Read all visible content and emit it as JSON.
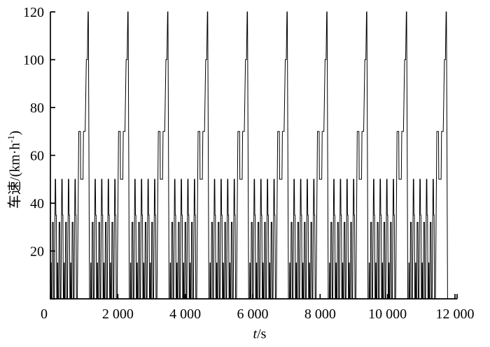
{
  "figure": {
    "background": "#ffffff",
    "line_color": "#000000",
    "labels": {
      "ylabel_prefix": "车速/(km·h",
      "ylabel_sup": "-1",
      "ylabel_suffix": ")",
      "xlabel_italic": "t",
      "xlabel_rest": "/s"
    }
  },
  "chart_data": {
    "type": "line",
    "title": "",
    "xlabel": "t/s",
    "ylabel": "车速/(km·h^-1)",
    "xlim": [
      0,
      12000
    ],
    "ylim": [
      0,
      120
    ],
    "grid": false,
    "legend": "none",
    "xticks": {
      "values": [
        0,
        2000,
        4000,
        6000,
        8000,
        10000,
        12000
      ],
      "labels": [
        "0",
        "2 000",
        "4 000",
        "6 000",
        "8 000",
        "10 000",
        "12 000"
      ]
    },
    "yticks": {
      "values": [
        0,
        20,
        40,
        60,
        80,
        100,
        120
      ],
      "labels": [
        "",
        "20",
        "40",
        "60",
        "80",
        "100",
        "120"
      ]
    },
    "drive_cycle": {
      "description": "NEDC speed profile repeated; 4 urban ECE sub-cycles then extra-urban segment per cycle",
      "repeats": 10,
      "cycle_duration_s": 1180,
      "urban_subcycle_repeats": 4,
      "urban_subcycle_duration_s": 195,
      "urban_subcycle_points": [
        [
          0,
          0
        ],
        [
          11,
          0
        ],
        [
          15,
          15
        ],
        [
          23,
          15
        ],
        [
          28,
          0
        ],
        [
          49,
          0
        ],
        [
          61,
          32
        ],
        [
          85,
          32
        ],
        [
          96,
          0
        ],
        [
          117,
          0
        ],
        [
          143,
          50
        ],
        [
          155,
          50
        ],
        [
          163,
          35
        ],
        [
          176,
          35
        ],
        [
          188,
          0
        ],
        [
          195,
          0
        ]
      ],
      "extra_urban_offset_s": 780,
      "extra_urban_duration_s": 400,
      "extra_urban_points": [
        [
          0,
          0
        ],
        [
          20,
          0
        ],
        [
          61,
          70
        ],
        [
          111,
          70
        ],
        [
          119,
          50
        ],
        [
          188,
          50
        ],
        [
          201,
          70
        ],
        [
          251,
          70
        ],
        [
          286,
          100
        ],
        [
          316,
          100
        ],
        [
          336,
          120
        ],
        [
          346,
          120
        ],
        [
          380,
          0
        ],
        [
          400,
          0
        ]
      ],
      "tail_points": [
        [
          11800,
          0
        ],
        [
          12000,
          0
        ]
      ],
      "speed_levels_kmh": [
        15,
        32,
        35,
        50,
        70,
        100,
        120
      ]
    }
  }
}
